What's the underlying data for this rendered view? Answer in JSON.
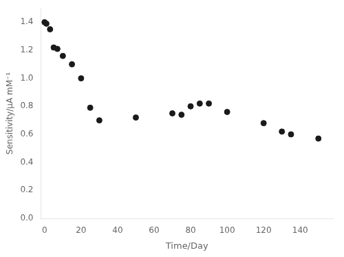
{
  "chart_data": {
    "type": "scatter",
    "x": [
      0,
      1,
      3,
      5,
      7,
      10,
      15,
      20,
      25,
      30,
      50,
      70,
      75,
      80,
      85,
      90,
      100,
      120,
      130,
      135,
      150
    ],
    "values": [
      1.4,
      1.39,
      1.35,
      1.22,
      1.21,
      1.16,
      1.1,
      1.0,
      0.79,
      0.7,
      0.72,
      0.75,
      0.74,
      0.8,
      0.82,
      0.82,
      0.76,
      0.68,
      0.62,
      0.6,
      0.57
    ],
    "xlabel": "Time/Day",
    "ylabel": "Sensitivity/μA mM⁻¹",
    "xlim": [
      -2,
      158
    ],
    "ylim": [
      0.0,
      1.5
    ],
    "xticks": [
      0,
      20,
      40,
      60,
      80,
      100,
      120,
      140
    ],
    "yticks": [
      {
        "value": 0,
        "label": "0.0"
      },
      0.2,
      0.4,
      0.6,
      0.8,
      {
        "value": 1,
        "label": "1.0"
      },
      1.2,
      1.4
    ],
    "color": "#1a1a1a",
    "grid": false
  }
}
